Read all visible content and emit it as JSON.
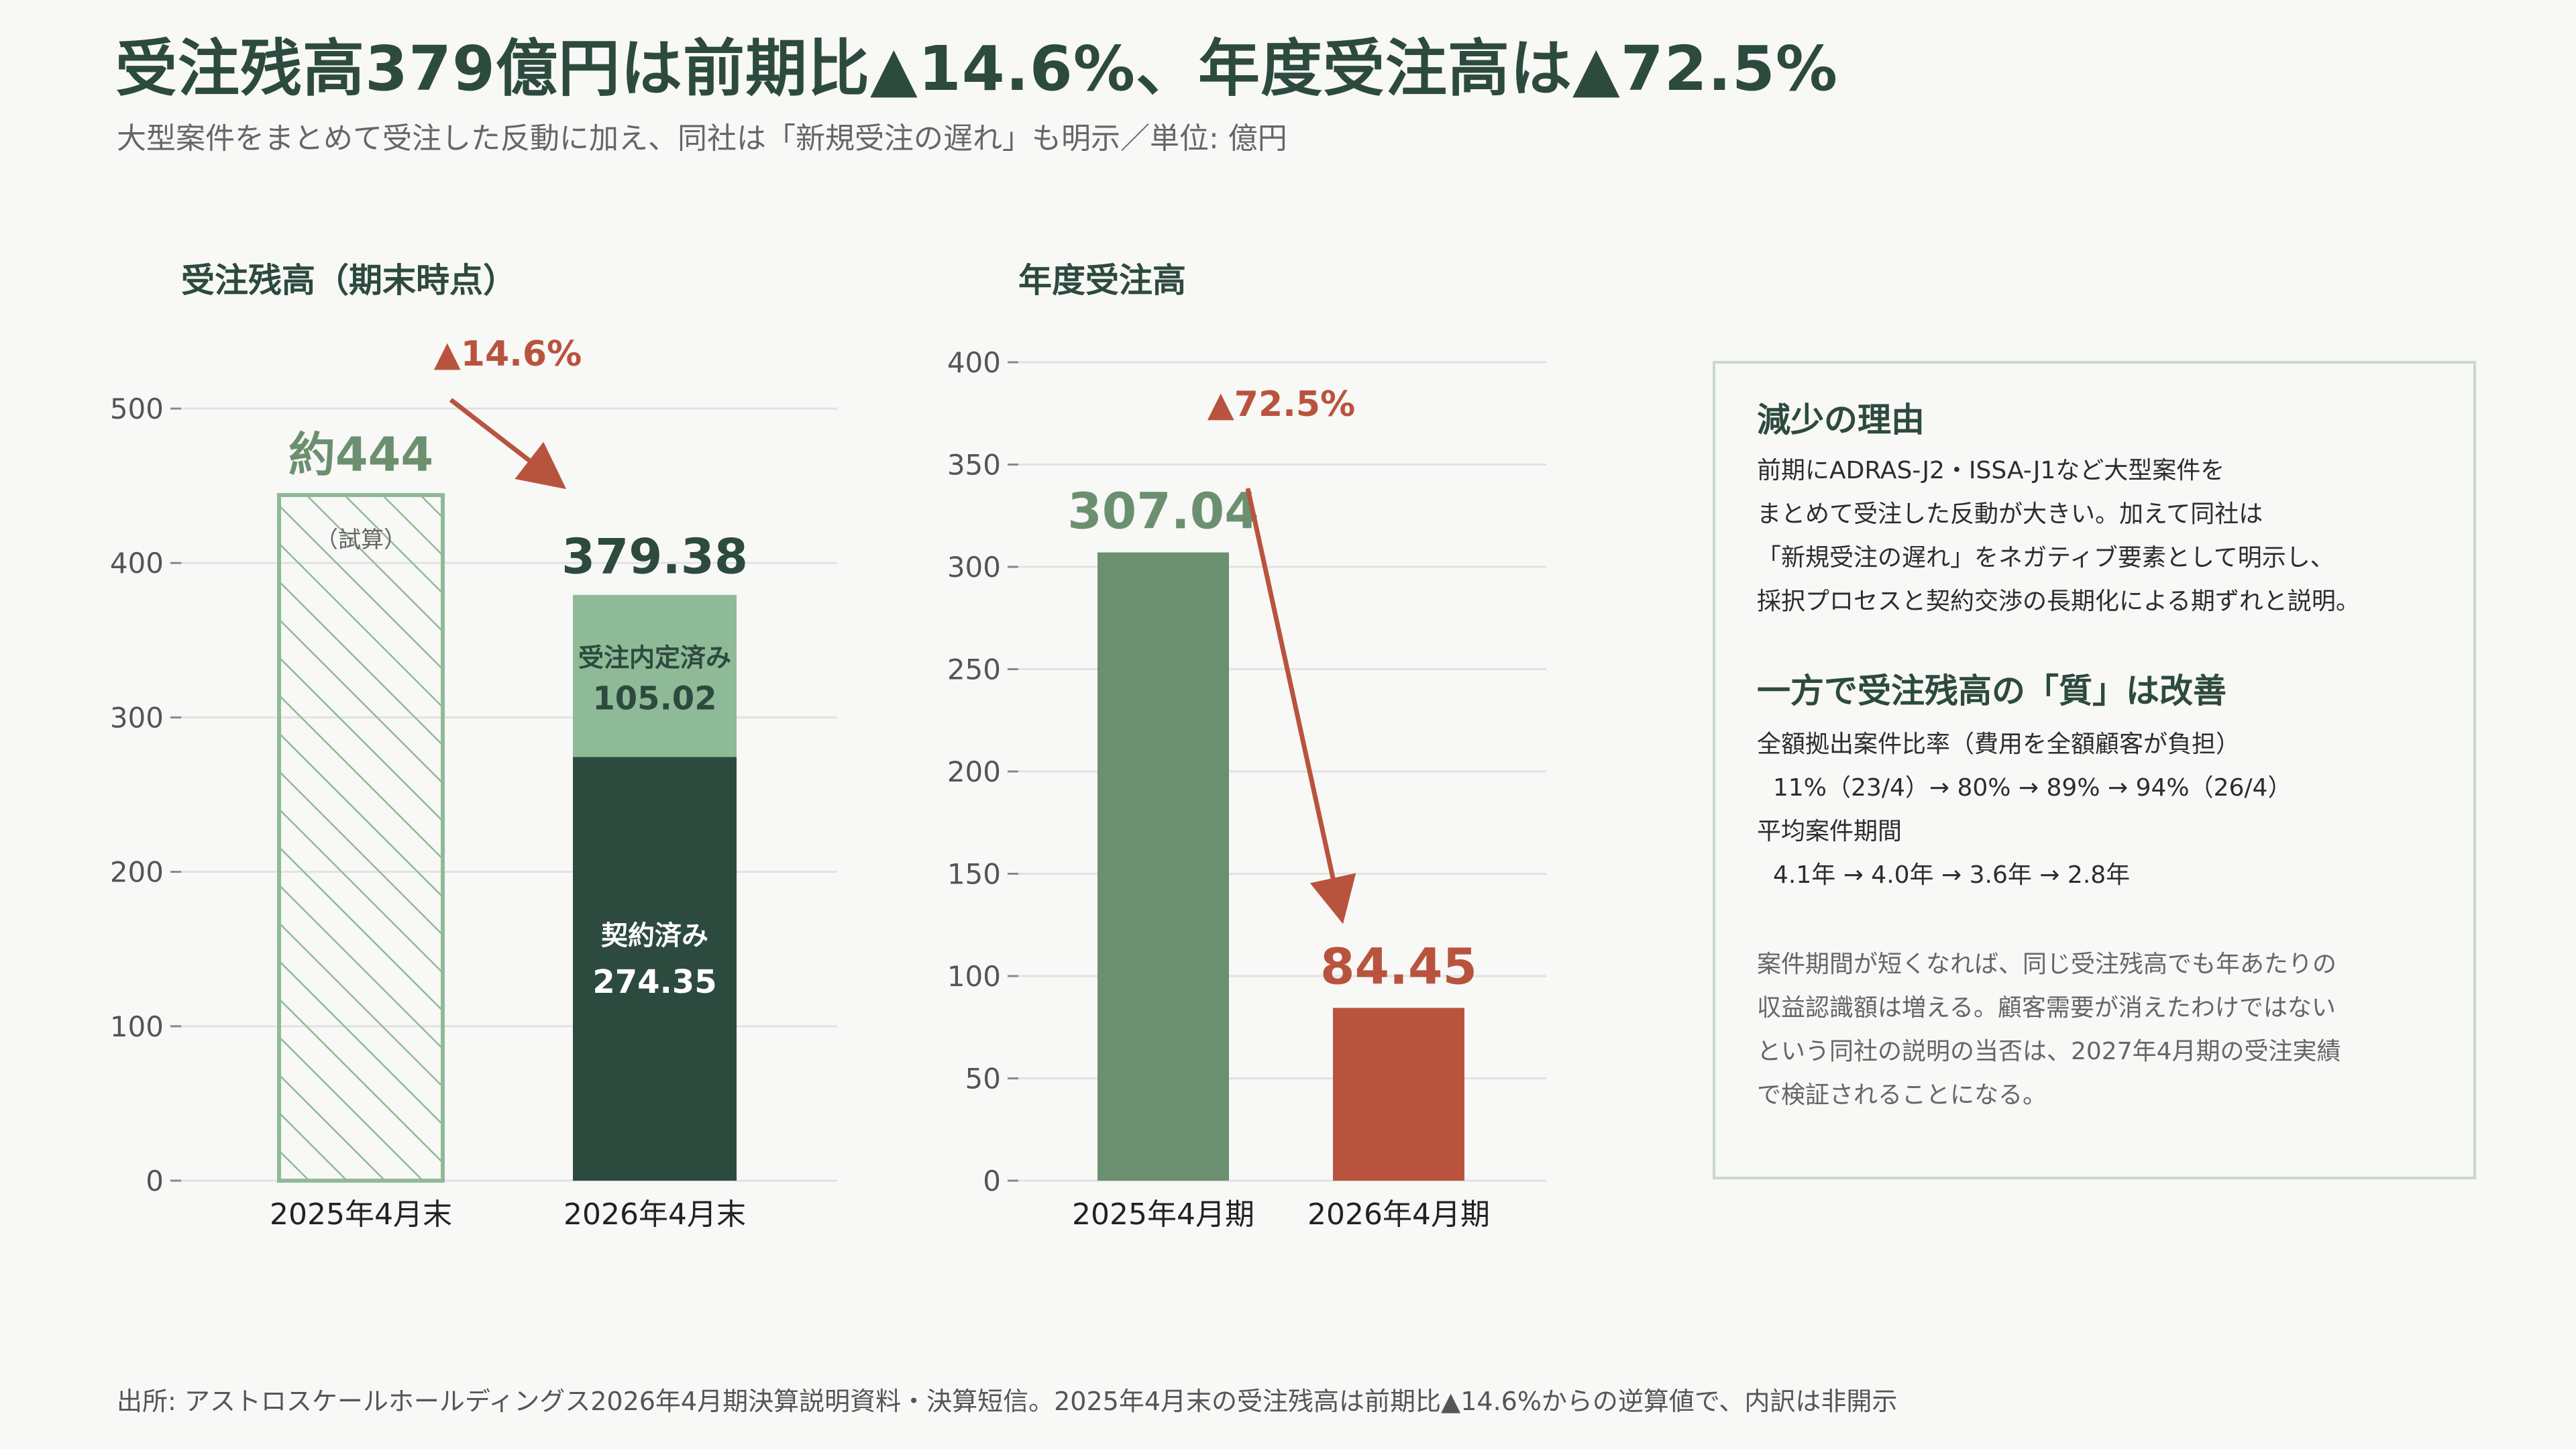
{
  "header": {
    "title": "受注残高379億円は前期比▲14.6%、年度受注高は▲72.5%",
    "subtitle": "大型案件をまとめて受注した反動に加え、同社は「新規受注の遅れ」も明示／単位: 億円"
  },
  "colors": {
    "dark_green": "#2d4a3e",
    "mid_green": "#6b9070",
    "light_green": "#8fba97",
    "red": "#b8543e",
    "grid": "#e2e2e2"
  },
  "chart_data": [
    {
      "type": "bar",
      "title": "受注残高（期末時点）",
      "categories": [
        "2025年4月末",
        "2026年4月末"
      ],
      "ylim": [
        0,
        530
      ],
      "yticks": [
        0,
        100,
        200,
        300,
        400,
        500
      ],
      "grid": true,
      "bars": {
        "estimate": {
          "category": "2025年4月末",
          "value": 444,
          "label": "約444",
          "note": "（試算）",
          "style": "hatched"
        },
        "stacked": {
          "category": "2026年4月末",
          "total": 379.38,
          "total_label": "379.38",
          "segments": [
            {
              "name": "契約済み",
              "value": 274.35,
              "label": "274.35",
              "color": "#2d4a3e"
            },
            {
              "name": "受注内定済み",
              "value": 105.02,
              "label": "105.02",
              "color": "#8fba97"
            }
          ]
        }
      },
      "annotation": "▲14.6%"
    },
    {
      "type": "bar",
      "title": "年度受注高",
      "categories": [
        "2025年4月期",
        "2026年4月期"
      ],
      "values": [
        307.04,
        84.45
      ],
      "value_labels": [
        "307.04",
        "84.45"
      ],
      "colors": [
        "#6b9070",
        "#b8543e"
      ],
      "ylim": [
        0,
        400
      ],
      "yticks": [
        0,
        50,
        100,
        150,
        200,
        250,
        300,
        350,
        400
      ],
      "grid": true,
      "annotation": "▲72.5%"
    }
  ],
  "sidebar_box": {
    "heading1": "減少の理由",
    "reason_lines": [
      "前期にADRAS-J2・ISSA-J1など大型案件を",
      "まとめて受注した反動が大きい。加えて同社は",
      "「新規受注の遅れ」をネガティブ要素として明示し、",
      "採択プロセスと契約交渉の長期化による期ずれと説明。"
    ],
    "heading2": "一方で受注残高の「質」は改善",
    "metric1_label": "全額拠出案件比率（費用を全額顧客が負担）",
    "metric1_value": "11%（23/4）→ 80% → 89% → 94%（26/4）",
    "metric2_label": "平均案件期間",
    "metric2_value": "4.1年 → 4.0年 → 3.6年 → 2.8年",
    "note_lines": [
      "案件期間が短くなれば、同じ受注残高でも年あたりの",
      "収益認識額は増える。顧客需要が消えたわけではない",
      "という同社の説明の当否は、2027年4月期の受注実績",
      "で検証されることになる。"
    ]
  },
  "footer": {
    "source": "出所: アストロスケールホールディングス2026年4月期決算説明資料・決算短信。2025年4月末の受注残高は前期比▲14.6%からの逆算値で、内訳は非開示"
  }
}
